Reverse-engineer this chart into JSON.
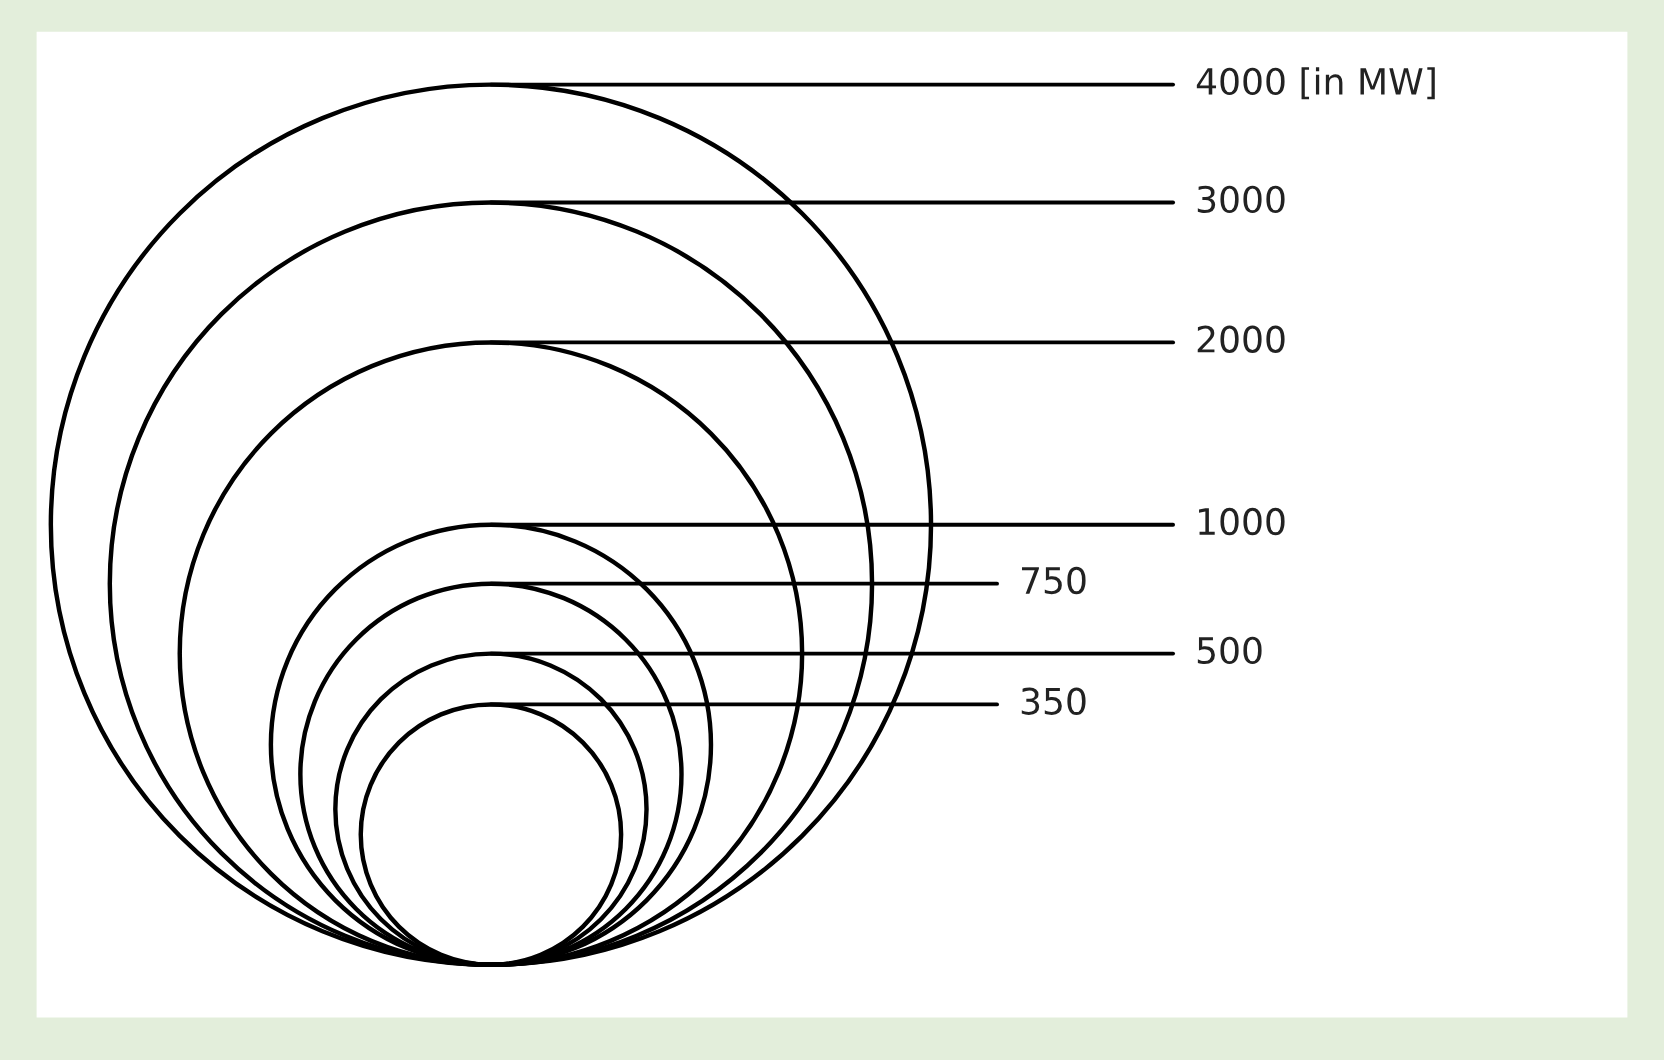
{
  "chart_data": {
    "type": "other",
    "values": [
      4000,
      3000,
      2000,
      1000,
      750,
      500,
      350
    ],
    "value_labels": [
      "4000 [in MW]",
      "3000",
      "2000",
      "1000",
      "750",
      "500",
      "350"
    ],
    "color": "#000000"
  }
}
